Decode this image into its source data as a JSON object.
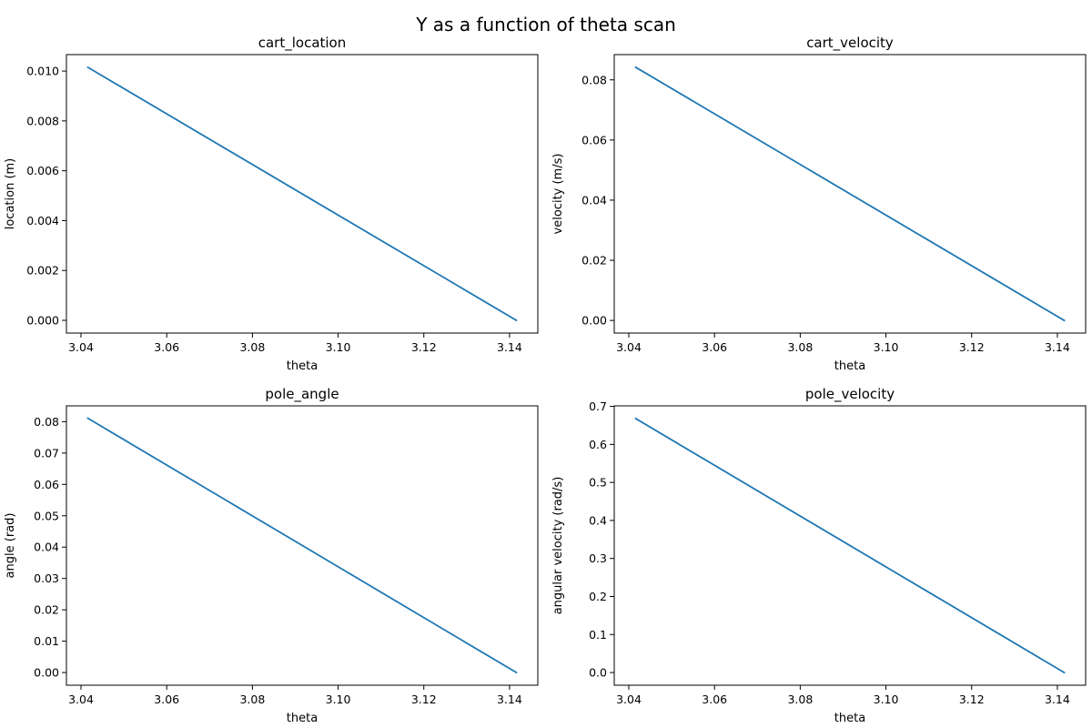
{
  "figure": {
    "suptitle": "Y as a function of theta scan",
    "line_color": "#1f77b4"
  },
  "chart_data": [
    {
      "type": "line",
      "title": "cart_location",
      "xlabel": "theta",
      "ylabel": "location (m)",
      "xlim": [
        3.0366,
        3.1466
      ],
      "ylim": [
        -0.00051,
        0.01066
      ],
      "xticks": [
        3.04,
        3.06,
        3.08,
        3.1,
        3.12,
        3.14
      ],
      "xtick_labels": [
        "3.04",
        "3.06",
        "3.08",
        "3.10",
        "3.12",
        "3.14"
      ],
      "yticks": [
        0.0,
        0.002,
        0.004,
        0.006,
        0.008,
        0.01
      ],
      "ytick_labels": [
        "0.000",
        "0.002",
        "0.004",
        "0.006",
        "0.008",
        "0.010"
      ],
      "series": [
        {
          "x": [
            3.0416,
            3.1416
          ],
          "y": [
            0.01015,
            0.0
          ]
        }
      ]
    },
    {
      "type": "line",
      "title": "cart_velocity",
      "xlabel": "theta",
      "ylabel": "velocity (m/s)",
      "xlim": [
        3.0366,
        3.1466
      ],
      "ylim": [
        -0.0042,
        0.0884
      ],
      "xticks": [
        3.04,
        3.06,
        3.08,
        3.1,
        3.12,
        3.14
      ],
      "xtick_labels": [
        "3.04",
        "3.06",
        "3.08",
        "3.10",
        "3.12",
        "3.14"
      ],
      "yticks": [
        0.0,
        0.02,
        0.04,
        0.06,
        0.08
      ],
      "ytick_labels": [
        "0.00",
        "0.02",
        "0.04",
        "0.06",
        "0.08"
      ],
      "series": [
        {
          "x": [
            3.0416,
            3.1416
          ],
          "y": [
            0.0842,
            0.0
          ]
        }
      ]
    },
    {
      "type": "line",
      "title": "pole_angle",
      "xlabel": "theta",
      "ylabel": "angle (rad)",
      "xlim": [
        3.0366,
        3.1466
      ],
      "ylim": [
        -0.00405,
        0.08505
      ],
      "xticks": [
        3.04,
        3.06,
        3.08,
        3.1,
        3.12,
        3.14
      ],
      "xtick_labels": [
        "3.04",
        "3.06",
        "3.08",
        "3.10",
        "3.12",
        "3.14"
      ],
      "yticks": [
        0.0,
        0.01,
        0.02,
        0.03,
        0.04,
        0.05,
        0.06,
        0.07,
        0.08
      ],
      "ytick_labels": [
        "0.00",
        "0.01",
        "0.02",
        "0.03",
        "0.04",
        "0.05",
        "0.06",
        "0.07",
        "0.08"
      ],
      "series": [
        {
          "x": [
            3.0416,
            3.1416
          ],
          "y": [
            0.0811,
            0.0
          ]
        }
      ]
    },
    {
      "type": "line",
      "title": "pole_velocity",
      "xlabel": "theta",
      "ylabel": "angular velocity (rad/s)",
      "xlim": [
        3.0366,
        3.1466
      ],
      "ylim": [
        -0.0334,
        0.7014
      ],
      "xticks": [
        3.04,
        3.06,
        3.08,
        3.1,
        3.12,
        3.14
      ],
      "xtick_labels": [
        "3.04",
        "3.06",
        "3.08",
        "3.10",
        "3.12",
        "3.14"
      ],
      "yticks": [
        0.0,
        0.1,
        0.2,
        0.3,
        0.4,
        0.5,
        0.6,
        0.7
      ],
      "ytick_labels": [
        "0.0",
        "0.1",
        "0.2",
        "0.3",
        "0.4",
        "0.5",
        "0.6",
        "0.7"
      ],
      "series": [
        {
          "x": [
            3.0416,
            3.1416
          ],
          "y": [
            0.668,
            0.0
          ]
        }
      ]
    }
  ]
}
